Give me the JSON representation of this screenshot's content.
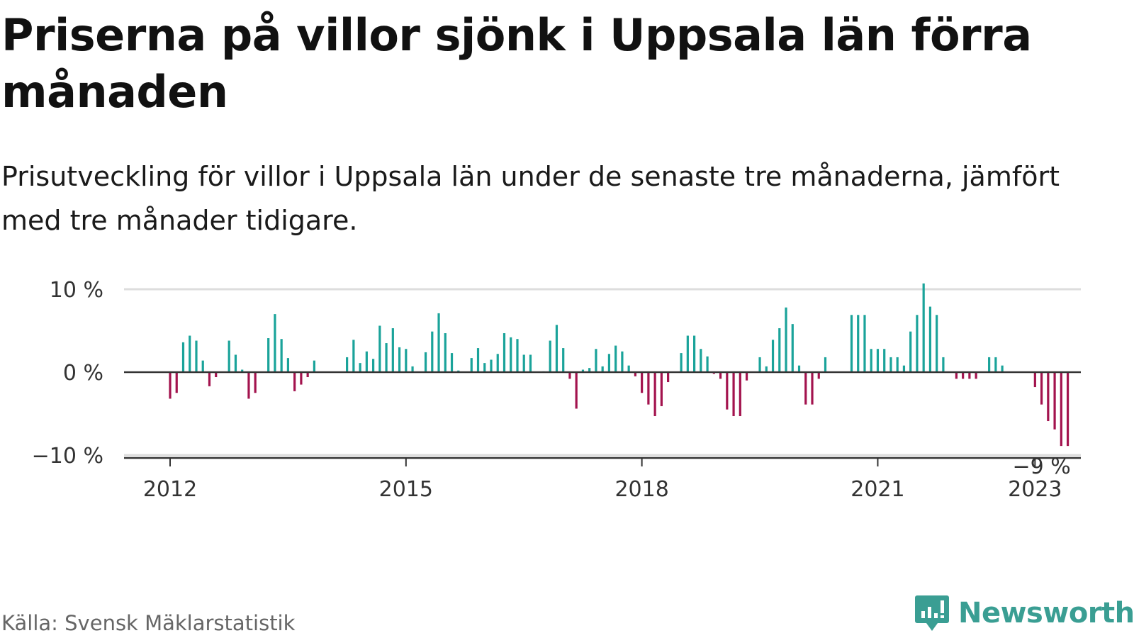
{
  "title": "Priserna på villor sjönk i Uppsala län förra månaden",
  "subtitle": "Prisutveckling för villor i Uppsala län under de senaste tre månaderna, jämfört med tre månader tidigare.",
  "source": "Källa: Svensk Mäklarstatistik",
  "brand": {
    "name": "Newsworthy",
    "icon": "newsworthy-logo-icon"
  },
  "colors": {
    "positive": "#1aa39a",
    "negative": "#a3134e",
    "axis": "#333333",
    "grid": "#dddddd",
    "brand": "#3a9e93"
  },
  "chart_data": {
    "type": "bar",
    "title": "Priserna på villor sjönk i Uppsala län förra månaden",
    "subtitle": "Prisutveckling för villor i Uppsala län under de senaste tre månaderna, jämfört med tre månader tidigare.",
    "xlabel": "",
    "ylabel": "",
    "unit": "%",
    "ylim": [
      -10,
      10
    ],
    "yticks": [
      {
        "value": 10,
        "label": "10 %"
      },
      {
        "value": 0,
        "label": "0 %"
      },
      {
        "value": -10,
        "label": "−10 %"
      }
    ],
    "xticks": [
      {
        "index": 0,
        "label": "2012"
      },
      {
        "index": 36,
        "label": "2015"
      },
      {
        "index": 72,
        "label": "2018"
      },
      {
        "index": 108,
        "label": "2021"
      },
      {
        "index": 132,
        "label": "2023"
      }
    ],
    "grid": true,
    "legend": "none",
    "start": "2012-01",
    "frequency": "monthly",
    "values": [
      -3.2,
      -2.5,
      3.6,
      4.4,
      3.8,
      1.4,
      -1.7,
      -0.6,
      null,
      3.8,
      2.1,
      0.3,
      -3.2,
      -2.5,
      null,
      4.1,
      7.0,
      4.0,
      1.7,
      -2.3,
      -1.5,
      -0.6,
      1.4,
      null,
      null,
      null,
      null,
      1.8,
      3.9,
      1.1,
      2.5,
      1.6,
      5.6,
      3.5,
      5.3,
      3.0,
      2.8,
      0.7,
      null,
      2.4,
      4.9,
      7.1,
      4.7,
      2.3,
      0.2,
      null,
      1.7,
      2.9,
      1.1,
      1.5,
      2.2,
      4.7,
      4.2,
      4.0,
      2.1,
      2.1,
      null,
      0.1,
      3.8,
      5.7,
      2.9,
      -0.8,
      -4.4,
      0.3,
      0.5,
      2.8,
      0.7,
      2.2,
      3.2,
      2.5,
      0.8,
      -0.5,
      -2.5,
      -3.9,
      -5.3,
      -4.1,
      -1.2,
      null,
      2.3,
      4.4,
      4.4,
      2.8,
      1.9,
      -0.2,
      -0.8,
      -4.5,
      -5.3,
      -5.3,
      -1.0,
      null,
      1.8,
      0.7,
      3.9,
      5.3,
      7.8,
      5.8,
      0.8,
      -3.9,
      -3.9,
      -0.8,
      1.8,
      null,
      null,
      null,
      6.9,
      6.9,
      6.9,
      2.8,
      2.8,
      2.8,
      1.8,
      1.8,
      0.8,
      4.9,
      6.9,
      10.7,
      7.9,
      6.9,
      1.8,
      null,
      -0.8,
      -0.8,
      -0.8,
      -0.8,
      null,
      1.8,
      1.8,
      0.8,
      null,
      null,
      null,
      null,
      -1.8,
      -3.9,
      -5.9,
      -6.9,
      -8.9,
      -8.9
    ],
    "annotations": [
      {
        "index": 133,
        "label": "−9 %"
      }
    ]
  }
}
